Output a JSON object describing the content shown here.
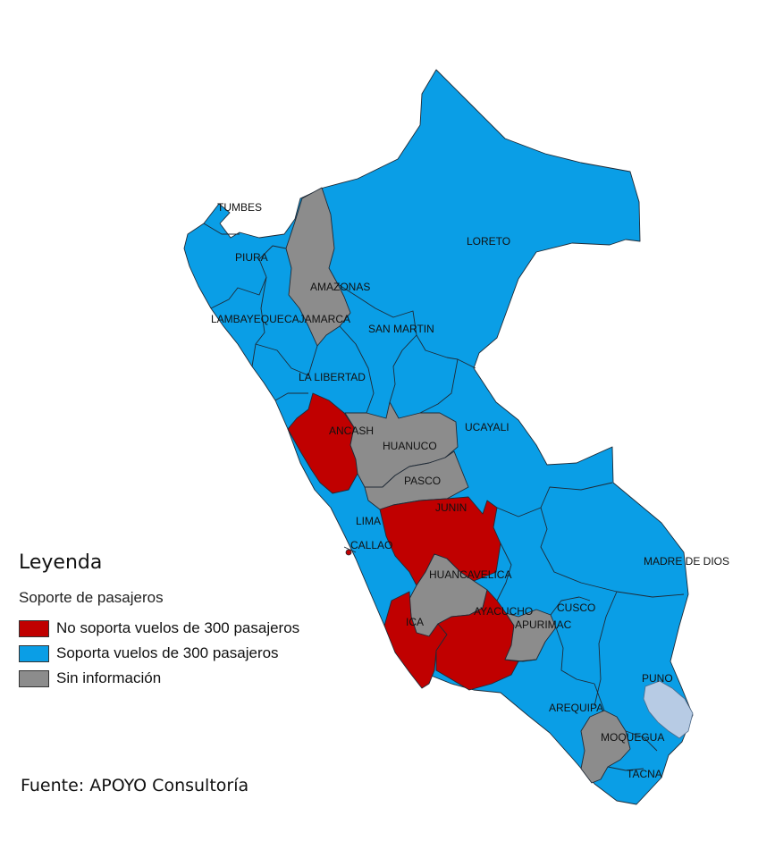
{
  "map": {
    "colors": {
      "no_soporta": "#c00000",
      "soporta": "#0a9ee6",
      "sin_info": "#8c8c8c",
      "lake": "#b7cbe4"
    },
    "regions": [
      {
        "id": "tumbes",
        "label": "TUMBES",
        "category": "soporta"
      },
      {
        "id": "piura",
        "label": "PIURA",
        "category": "soporta"
      },
      {
        "id": "lambayeque",
        "label": "LAMBAYEQUE",
        "category": "soporta"
      },
      {
        "id": "cajamarca",
        "label": "CAJAMARCA",
        "category": "soporta"
      },
      {
        "id": "amazonas",
        "label": "AMAZONAS",
        "category": "sin_info"
      },
      {
        "id": "loreto",
        "label": "LORETO",
        "category": "soporta"
      },
      {
        "id": "san-martin",
        "label": "SAN MARTIN",
        "category": "soporta"
      },
      {
        "id": "la-libertad",
        "label": "LA LIBERTAD",
        "category": "soporta"
      },
      {
        "id": "ancash",
        "label": "ANCASH",
        "category": "no_soporta"
      },
      {
        "id": "huanuco",
        "label": "HUANUCO",
        "category": "sin_info"
      },
      {
        "id": "ucayali",
        "label": "UCAYALI",
        "category": "soporta"
      },
      {
        "id": "pasco",
        "label": "PASCO",
        "category": "sin_info"
      },
      {
        "id": "junin",
        "label": "JUNIN",
        "category": "no_soporta"
      },
      {
        "id": "lima",
        "label": "LIMA",
        "category": "soporta"
      },
      {
        "id": "callao",
        "label": "CALLAO",
        "category": "soporta"
      },
      {
        "id": "madre-de-dios",
        "label": "MADRE DE DIOS",
        "category": "soporta"
      },
      {
        "id": "huancavelica",
        "label": "HUANCAVELICA",
        "category": "sin_info"
      },
      {
        "id": "ica",
        "label": "ICA",
        "category": "no_soporta"
      },
      {
        "id": "ayacucho",
        "label": "AYACUCHO",
        "category": "no_soporta"
      },
      {
        "id": "apurimac",
        "label": "APURIMAC",
        "category": "sin_info"
      },
      {
        "id": "cusco",
        "label": "CUSCO",
        "category": "soporta"
      },
      {
        "id": "puno",
        "label": "PUNO",
        "category": "soporta"
      },
      {
        "id": "arequipa",
        "label": "AREQUIPA",
        "category": "soporta"
      },
      {
        "id": "moquegua",
        "label": "MOQUEGUA",
        "category": "sin_info"
      },
      {
        "id": "tacna",
        "label": "TACNA",
        "category": "soporta"
      }
    ]
  },
  "legend": {
    "title": "Leyenda",
    "subtitle": "Soporte de pasajeros",
    "items": [
      {
        "label": "No soporta vuelos de 300 pasajeros",
        "color": "#c00000"
      },
      {
        "label": "Soporta vuelos de 300 pasajeros",
        "color": "#0a9ee6"
      },
      {
        "label": "Sin información",
        "color": "#8c8c8c"
      }
    ]
  },
  "source": "Fuente: APOYO Consultoría"
}
